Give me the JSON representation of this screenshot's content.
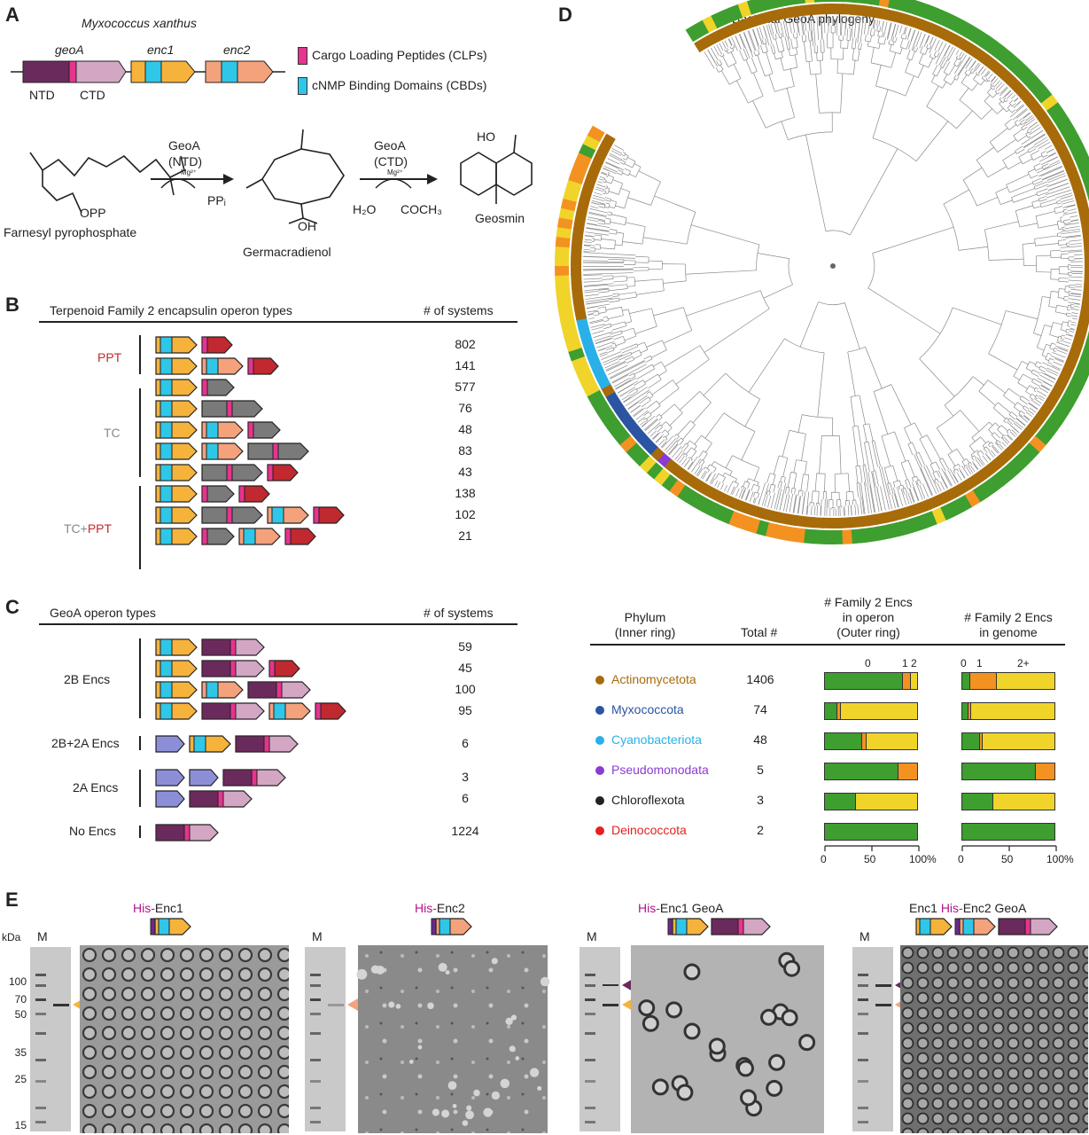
{
  "colors": {
    "ntd": "#6b2a5c",
    "clp": "#e8338f",
    "ctd": "#d3a7c4",
    "enc_body": "#f6b33c",
    "cbd": "#2fc7e8",
    "enc2_body": "#f4a27c",
    "ppt": "#c0292f",
    "tc": "#7a7a7a",
    "enc2a": "#8c8fd8",
    "actino": "#a86b0a",
    "myxo": "#2b54a3",
    "cyano": "#2ab0e8",
    "pseudo": "#8a3bd1",
    "chloro": "#222222",
    "deino": "#e62020",
    "green": "#3e9e2f",
    "orange": "#f39220",
    "yellow": "#f0d42a"
  },
  "panelA": {
    "label": "A",
    "organism": "Myxococcus xanthus",
    "genes": {
      "geoA": "geoA",
      "enc1": "enc1",
      "enc2": "enc2",
      "ntd": "NTD",
      "ctd": "CTD"
    },
    "legend": {
      "clp": "Cargo Loading Peptides (CLPs)",
      "cbd": "cNMP Binding Domains (CBDs)"
    },
    "reaction": {
      "fpp": "Farnesyl pyrophosphate",
      "opp": "OPP",
      "enzyme1": "GeoA",
      "domain1": "(NTD)",
      "cofactor1": "Mg²⁺",
      "product1": "PPᵢ",
      "germ": "Germacradienol",
      "oh": "OH",
      "enzyme2": "GeoA",
      "domain2": "(CTD)",
      "cofactor2": "Mg²⁺",
      "h2o": "H₂O",
      "coch3": "COCH₃",
      "geosmin": "Geosmin",
      "ho": "HO"
    }
  },
  "panelB": {
    "label": "B",
    "title": "Terpenoid Family 2 encapsulin operon types",
    "count_header": "# of systems",
    "groups": [
      {
        "name": "PPT"
      },
      {
        "name": "TC"
      },
      {
        "name_a": "TC+",
        "name_b": "PPT"
      }
    ],
    "counts": [
      "802",
      "141",
      "577",
      "76",
      "48",
      "83",
      "43",
      "138",
      "102",
      "21"
    ]
  },
  "panelC": {
    "label": "C",
    "title": "GeoA operon types",
    "count_header": "# of systems",
    "groups": [
      "2B Encs",
      "2B+2A Encs",
      "2A Encs",
      "No Encs"
    ],
    "counts": [
      "59",
      "45",
      "100",
      "95",
      "6",
      "3",
      "6",
      "1224"
    ]
  },
  "panelD": {
    "label": "D",
    "title": "Bacterial GeoA phylogeny",
    "headers": {
      "phylum": "Phylum",
      "phylum_sub": "(Inner ring)",
      "total": "Total #",
      "operon": "# Family 2 Encs",
      "operon_sub1": "in operon",
      "operon_sub2": "(Outer ring)",
      "genome": "# Family 2 Encs",
      "genome_sub": "in genome"
    },
    "operon_key": [
      "0",
      "1",
      "2"
    ],
    "genome_key": [
      "0",
      "1",
      "2+"
    ],
    "axis_ticks": [
      "0",
      "50",
      "100%"
    ],
    "rows": [
      {
        "phylum": "Actinomycetota",
        "total": "1406",
        "operon": [
          85,
          8,
          7
        ],
        "genome": [
          8,
          28,
          64
        ]
      },
      {
        "phylum": "Myxococcota",
        "total": "74",
        "operon": [
          13,
          3,
          84
        ],
        "genome": [
          6,
          2,
          92
        ]
      },
      {
        "phylum": "Cyanobacteriota",
        "total": "48",
        "operon": [
          40,
          4,
          56
        ],
        "genome": [
          19,
          2,
          79
        ]
      },
      {
        "phylum": "Pseudomonodata",
        "total": "5",
        "operon": [
          80,
          20,
          0
        ],
        "genome": [
          80,
          20,
          0
        ]
      },
      {
        "phylum": "Chloroflexota",
        "total": "3",
        "operon": [
          33,
          0,
          67
        ],
        "genome": [
          33,
          0,
          67
        ]
      },
      {
        "phylum": "Deinococcota",
        "total": "2",
        "operon": [
          100,
          0,
          0
        ],
        "genome": [
          100,
          0,
          0
        ]
      }
    ]
  },
  "panelE": {
    "label": "E",
    "kda": "kDa",
    "marker": "M",
    "ladder": [
      "100",
      "70",
      "50",
      "35",
      "25",
      "15"
    ],
    "samples": [
      {
        "his": "His-",
        "name": "Enc1"
      },
      {
        "his": "His-",
        "name": "Enc2"
      },
      {
        "his": "His-",
        "name": "Enc1 GeoA"
      },
      {
        "pre": "Enc1 ",
        "his": "His-",
        "name": "Enc2  GeoA"
      }
    ]
  }
}
